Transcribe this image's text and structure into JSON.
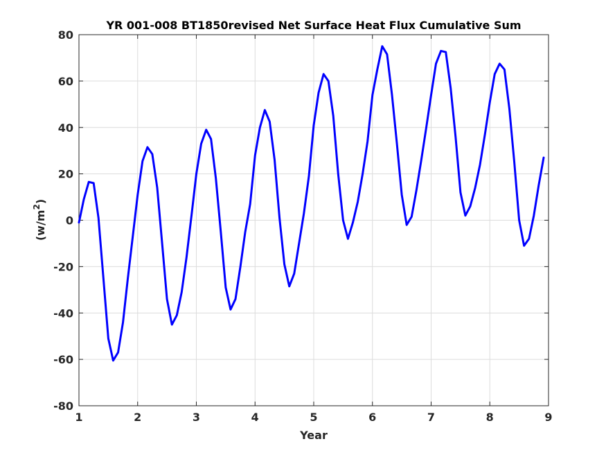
{
  "chart_data": {
    "type": "line",
    "title": "YR 001-008 BT1850revised Net Surface Heat Flux  Cumulative Sum",
    "xlabel": "Year",
    "ylabel_main": "(w/m",
    "ylabel_sup": "2",
    "ylabel_end": ")",
    "xlim": [
      1,
      9
    ],
    "ylim": [
      -80,
      80
    ],
    "xticks": [
      1,
      2,
      3,
      4,
      5,
      6,
      7,
      8,
      9
    ],
    "yticks": [
      -80,
      -60,
      -40,
      -20,
      0,
      20,
      40,
      60,
      80
    ],
    "grid": true,
    "series": [
      {
        "color": "#0000ff",
        "x": [
          1.0,
          1.083,
          1.167,
          1.25,
          1.333,
          1.417,
          1.5,
          1.583,
          1.667,
          1.75,
          1.833,
          1.917,
          2.0,
          2.083,
          2.167,
          2.25,
          2.333,
          2.417,
          2.5,
          2.583,
          2.667,
          2.75,
          2.833,
          2.917,
          3.0,
          3.083,
          3.167,
          3.25,
          3.333,
          3.417,
          3.5,
          3.583,
          3.667,
          3.75,
          3.833,
          3.917,
          4.0,
          4.083,
          4.167,
          4.25,
          4.333,
          4.417,
          4.5,
          4.583,
          4.667,
          4.75,
          4.833,
          4.917,
          5.0,
          5.083,
          5.167,
          5.25,
          5.333,
          5.417,
          5.5,
          5.583,
          5.667,
          5.75,
          5.833,
          5.917,
          6.0,
          6.083,
          6.167,
          6.25,
          6.333,
          6.417,
          6.5,
          6.583,
          6.667,
          6.75,
          6.833,
          6.917,
          7.0,
          7.083,
          7.167,
          7.25,
          7.333,
          7.417,
          7.5,
          7.583,
          7.667,
          7.75,
          7.833,
          7.917,
          8.0,
          8.083,
          8.167,
          8.25,
          8.333,
          8.417,
          8.5,
          8.583,
          8.667,
          8.75,
          8.833,
          8.917
        ],
        "y": [
          -1,
          9,
          16.5,
          16,
          1,
          -25,
          -51,
          -60.5,
          -57,
          -44,
          -25,
          -7,
          11,
          25.5,
          31.5,
          28.5,
          14,
          -10,
          -34,
          -45,
          -41,
          -31,
          -16,
          2,
          20,
          33,
          39,
          35,
          18,
          -5,
          -29,
          -38.5,
          -34,
          -20,
          -5,
          7,
          28,
          40,
          47.5,
          42.5,
          26,
          1,
          -19,
          -28.5,
          -23,
          -10,
          3,
          19,
          41,
          55,
          63,
          60,
          45,
          20,
          0,
          -8,
          -1,
          8,
          20,
          34,
          54,
          65,
          75,
          71.5,
          54,
          33,
          11,
          -2,
          1.5,
          13,
          26,
          40,
          54,
          67.5,
          73,
          72.5,
          57,
          36,
          12,
          2,
          6,
          14,
          24,
          37,
          51,
          63,
          67.5,
          65,
          48,
          25,
          0,
          -11,
          -8,
          2,
          15,
          27
        ]
      }
    ]
  }
}
